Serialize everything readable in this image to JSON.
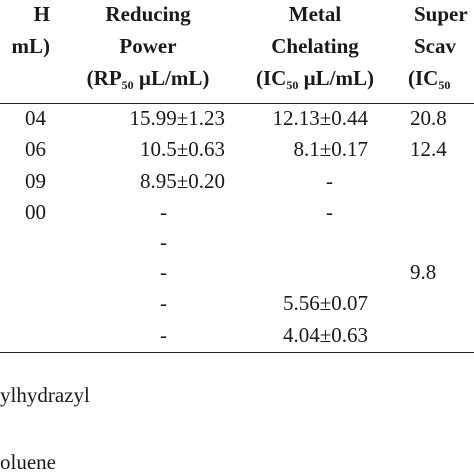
{
  "table": {
    "header": [
      {
        "lines": [
          "H",
          "mL)"
        ]
      },
      {
        "lines": [
          "Reducing",
          "Power"
        ],
        "unit": {
          "pre": "(RP",
          "sub": "50",
          "post": " µL/mL)"
        }
      },
      {
        "lines": [
          "Metal",
          "Chelating"
        ],
        "unit": {
          "pre": "(IC",
          "sub": "50",
          "post": " µL/mL)"
        }
      },
      {
        "lines": [
          "Super",
          "Scav"
        ],
        "unit": {
          "pre": "(IC",
          "sub": "50",
          "post": ""
        }
      }
    ],
    "rows": [
      [
        "04",
        "15.99±1.23",
        "12.13±0.44",
        "20.8"
      ],
      [
        "06",
        "10.5±0.63",
        "8.1±0.17",
        "12.4"
      ],
      [
        "09",
        "8.95±0.20",
        "-",
        null
      ],
      [
        "00",
        "-",
        "-",
        null
      ],
      [
        null,
        "-",
        null,
        null
      ],
      [
        null,
        "-",
        null,
        "9.8"
      ],
      [
        null,
        "-",
        "5.56±0.07",
        null
      ],
      [
        null,
        "-",
        "4.04±0.63",
        null
      ]
    ],
    "footnotes": [
      "ylhydrazyl",
      "oluene"
    ]
  }
}
